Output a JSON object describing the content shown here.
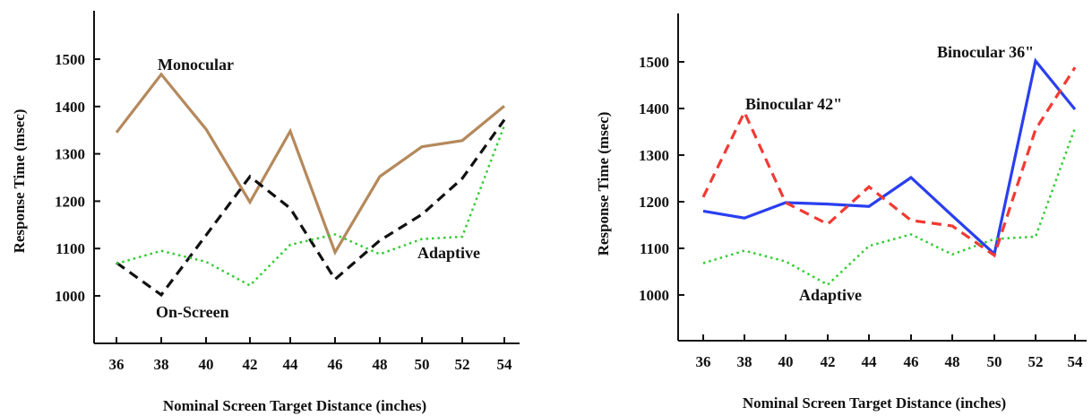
{
  "chart_data": [
    {
      "type": "line",
      "title": "",
      "xlabel": "Nominal Screen Target Distance (inches)",
      "ylabel": "Response Time (msec)",
      "x": [
        36,
        38,
        40,
        42,
        44,
        46,
        48,
        50,
        52,
        54
      ],
      "x_tick_labels": [
        "36",
        "38",
        "40",
        "42",
        "44",
        "46",
        "48",
        "50",
        "52",
        "54"
      ],
      "y_tick_labels": [
        "1000",
        "1100",
        "1200",
        "1300",
        "1400",
        "1500"
      ],
      "xlim": [
        35,
        55
      ],
      "ylim": [
        900,
        1610
      ],
      "grid": false,
      "series": [
        {
          "name": "Monocular",
          "color": "#b5895c",
          "dash": "solid",
          "values": [
            1345,
            1468,
            1352,
            1198,
            1348,
            1092,
            1252,
            1315,
            1328,
            1401
          ]
        },
        {
          "name": "On-Screen",
          "color": "#111111",
          "dash": "dashed",
          "values": [
            1070,
            1002,
            1128,
            1252,
            1185,
            1035,
            1117,
            1172,
            1248,
            1372
          ]
        },
        {
          "name": "Adaptive",
          "color": "#33cc33",
          "dash": "dotted",
          "values": [
            1068,
            1095,
            1072,
            1022,
            1108,
            1130,
            1088,
            1120,
            1125,
            1360
          ]
        }
      ],
      "annotations": [
        "Monocular",
        "On-Screen",
        "Adaptive"
      ]
    },
    {
      "type": "line",
      "title": "",
      "xlabel": "Nominal Screen Target Distance (inches)",
      "ylabel": "Response Time (msec)",
      "x": [
        36,
        38,
        40,
        42,
        44,
        46,
        48,
        50,
        52,
        54
      ],
      "x_tick_labels": [
        "36",
        "38",
        "40",
        "42",
        "44",
        "46",
        "48",
        "50",
        "52",
        "54"
      ],
      "y_tick_labels": [
        "1000",
        "1100",
        "1200",
        "1300",
        "1400",
        "1500"
      ],
      "xlim": [
        35,
        55
      ],
      "ylim": [
        900,
        1610
      ],
      "grid": false,
      "series": [
        {
          "name": "Binocular 36\"",
          "color": "#2a3ff0",
          "dash": "solid",
          "values": [
            1180,
            1165,
            1198,
            1195,
            1190,
            1252,
            1170,
            1088,
            1502,
            1398
          ]
        },
        {
          "name": "Binocular 42\"",
          "color": "#f23a33",
          "dash": "dashed",
          "values": [
            1210,
            1392,
            1198,
            1152,
            1232,
            1160,
            1148,
            1085,
            1355,
            1488
          ]
        },
        {
          "name": "Adaptive",
          "color": "#33cc33",
          "dash": "dotted",
          "values": [
            1068,
            1095,
            1072,
            1022,
            1105,
            1130,
            1087,
            1120,
            1125,
            1358
          ]
        }
      ],
      "annotations": [
        "Binocular 36\"",
        "Binocular 42\"",
        "Adaptive"
      ]
    }
  ]
}
